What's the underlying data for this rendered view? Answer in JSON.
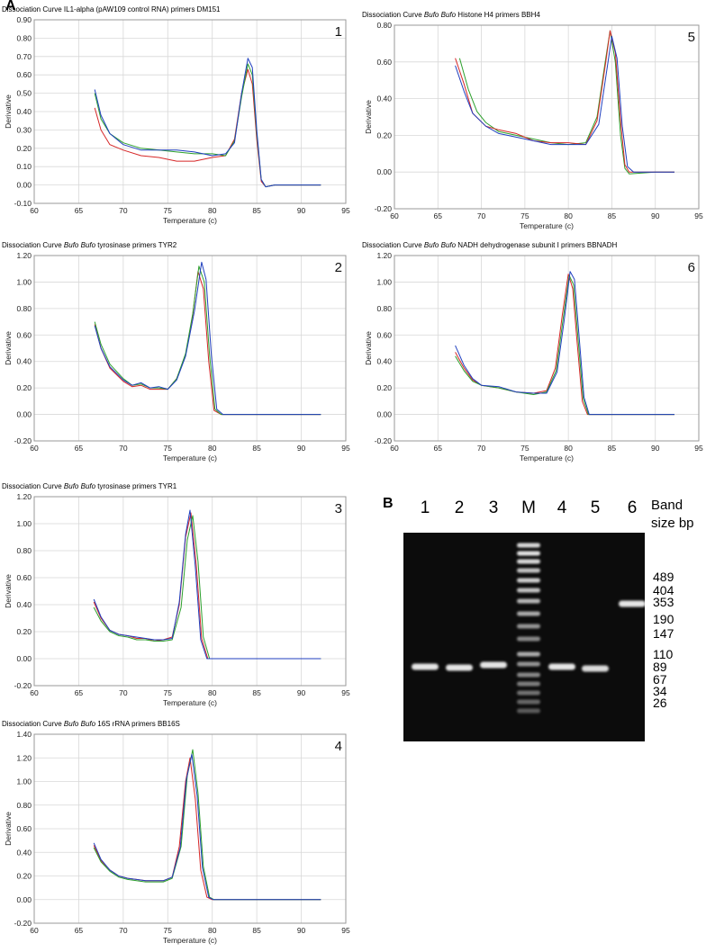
{
  "panel_labels": {
    "a": "A",
    "b": "B"
  },
  "chart_data": [
    {
      "type": "line",
      "id": "c1",
      "number": "1",
      "title_parts": [
        "Dissociation Curve IL1-alpha (pAW109 control RNA) primers DM151"
      ],
      "xlabel": "Temperature (c)",
      "ylabel": "Derivative",
      "xlim": [
        60,
        95
      ],
      "ylim": [
        -0.1,
        0.9
      ],
      "xticks": [
        60,
        65,
        70,
        75,
        80,
        85,
        90,
        95
      ],
      "yticks": [
        -0.1,
        0.0,
        0.1,
        0.2,
        0.3,
        0.4,
        0.5,
        0.6,
        0.7,
        0.8,
        0.9
      ],
      "ytick_labels": [
        "-0.10",
        "0.00",
        "0.10",
        "0.20",
        "0.30",
        "0.40",
        "0.50",
        "0.60",
        "0.70",
        "0.80",
        "0.90"
      ],
      "grid": true,
      "series": [
        {
          "color": "#d62728",
          "x": [
            66.8,
            67.5,
            68.5,
            70,
            72,
            74,
            76,
            78,
            80,
            81.5,
            82.5,
            83.3,
            84.0,
            84.5,
            85.0,
            85.5,
            86.0,
            87,
            90,
            92.2
          ],
          "values": [
            0.42,
            0.3,
            0.22,
            0.19,
            0.16,
            0.15,
            0.13,
            0.13,
            0.15,
            0.16,
            0.25,
            0.5,
            0.63,
            0.55,
            0.25,
            0.02,
            -0.01,
            0.0,
            0.0,
            0.0
          ]
        },
        {
          "color": "#2ca02c",
          "x": [
            66.8,
            67.5,
            68.5,
            70,
            72,
            74,
            76,
            78,
            80,
            81.5,
            82.5,
            83.3,
            84.0,
            84.5,
            85.0,
            85.5,
            86.0,
            87,
            90,
            92.2
          ],
          "values": [
            0.5,
            0.36,
            0.28,
            0.23,
            0.2,
            0.19,
            0.18,
            0.17,
            0.17,
            0.16,
            0.24,
            0.48,
            0.66,
            0.6,
            0.28,
            0.03,
            -0.01,
            0.0,
            0.0,
            0.0
          ]
        },
        {
          "color": "#1f3fbf",
          "x": [
            66.8,
            67.5,
            68.5,
            70,
            72,
            74,
            76,
            78,
            80,
            81.5,
            82.5,
            83.3,
            84.0,
            84.5,
            85.0,
            85.5,
            86.0,
            87,
            90,
            92.2
          ],
          "values": [
            0.52,
            0.38,
            0.28,
            0.22,
            0.19,
            0.19,
            0.19,
            0.18,
            0.16,
            0.17,
            0.23,
            0.5,
            0.69,
            0.64,
            0.3,
            0.03,
            -0.01,
            0.0,
            0.0,
            0.0
          ]
        }
      ]
    },
    {
      "type": "line",
      "id": "c5",
      "number": "5",
      "title_parts": [
        "Dissociation Curve ",
        "Bufo Bufo",
        " Histone H4 primers BBH4"
      ],
      "xlabel": "Temperature (c)",
      "ylabel": "Derivative",
      "xlim": [
        60,
        95
      ],
      "ylim": [
        -0.2,
        0.8
      ],
      "xticks": [
        60,
        65,
        70,
        75,
        80,
        85,
        90,
        95
      ],
      "yticks": [
        -0.2,
        0.0,
        0.2,
        0.4,
        0.6,
        0.8
      ],
      "ytick_labels": [
        "-0.20",
        "0.00",
        "0.20",
        "0.40",
        "0.60",
        "0.80"
      ],
      "grid": true,
      "series": [
        {
          "color": "#2ca02c",
          "x": [
            67.5,
            68.5,
            69.5,
            70.5,
            72,
            74,
            76,
            78,
            80,
            82,
            83.3,
            84.3,
            84.8,
            85.4,
            86.0,
            86.5,
            87,
            90,
            92.2
          ],
          "values": [
            0.62,
            0.45,
            0.33,
            0.27,
            0.22,
            0.2,
            0.18,
            0.16,
            0.15,
            0.16,
            0.3,
            0.62,
            0.77,
            0.6,
            0.2,
            0.02,
            -0.01,
            0.0,
            0.0
          ]
        },
        {
          "color": "#d62728",
          "x": [
            67.0,
            68.0,
            69.0,
            70.5,
            72,
            74,
            76,
            78,
            80,
            82,
            83.3,
            84.3,
            84.8,
            85.4,
            86.0,
            86.5,
            87,
            90,
            92.2
          ],
          "values": [
            0.62,
            0.48,
            0.32,
            0.25,
            0.23,
            0.21,
            0.17,
            0.16,
            0.16,
            0.15,
            0.28,
            0.6,
            0.77,
            0.65,
            0.28,
            0.04,
            0.0,
            0.0,
            0.0
          ]
        },
        {
          "color": "#1f3fbf",
          "x": [
            67.0,
            68.0,
            69.0,
            70.5,
            72,
            74,
            76,
            78,
            80,
            82,
            83.5,
            84.5,
            85.0,
            85.6,
            86.2,
            86.8,
            87.5,
            90,
            92.2
          ],
          "values": [
            0.58,
            0.44,
            0.32,
            0.25,
            0.21,
            0.19,
            0.17,
            0.15,
            0.15,
            0.15,
            0.26,
            0.58,
            0.74,
            0.62,
            0.25,
            0.03,
            0.0,
            0.0,
            0.0
          ]
        }
      ]
    },
    {
      "type": "line",
      "id": "c2",
      "number": "2",
      "title_parts": [
        "Dissociation Curve ",
        "Bufo Bufo",
        "  tyrosinase primers TYR2"
      ],
      "xlabel": "Temperature (c)",
      "ylabel": "Derivative",
      "xlim": [
        60,
        95
      ],
      "ylim": [
        -0.2,
        1.2
      ],
      "xticks": [
        60,
        65,
        70,
        75,
        80,
        85,
        90,
        95
      ],
      "yticks": [
        -0.2,
        0.0,
        0.2,
        0.4,
        0.6,
        0.8,
        1.0,
        1.2
      ],
      "ytick_labels": [
        "-0.20",
        "0.00",
        "0.20",
        "0.40",
        "0.60",
        "0.80",
        "1.00",
        "1.20"
      ],
      "grid": true,
      "series": [
        {
          "color": "#d62728",
          "x": [
            66.8,
            67.5,
            68.5,
            70,
            71,
            72,
            73,
            74,
            75,
            76,
            77,
            77.8,
            78.4,
            79.0,
            79.6,
            80.2,
            81,
            85,
            92.2
          ],
          "values": [
            0.68,
            0.5,
            0.35,
            0.25,
            0.21,
            0.22,
            0.19,
            0.19,
            0.19,
            0.27,
            0.45,
            0.75,
            1.08,
            0.95,
            0.4,
            0.03,
            0.0,
            0.0,
            0.0
          ]
        },
        {
          "color": "#2ca02c",
          "x": [
            66.8,
            67.5,
            68.5,
            70,
            71,
            72,
            73,
            74,
            75,
            76,
            77,
            77.8,
            78.5,
            79.1,
            79.7,
            80.3,
            81,
            85,
            92.2
          ],
          "values": [
            0.7,
            0.53,
            0.38,
            0.27,
            0.22,
            0.23,
            0.2,
            0.2,
            0.19,
            0.27,
            0.46,
            0.76,
            1.12,
            1.0,
            0.45,
            0.04,
            0.0,
            0.0,
            0.0
          ]
        },
        {
          "color": "#1f3fbf",
          "x": [
            66.8,
            67.5,
            68.5,
            70,
            71,
            72,
            73,
            74,
            75,
            76,
            77,
            78.0,
            78.8,
            79.3,
            79.9,
            80.5,
            81.2,
            85,
            92.2
          ],
          "values": [
            0.67,
            0.5,
            0.36,
            0.26,
            0.22,
            0.24,
            0.2,
            0.21,
            0.19,
            0.26,
            0.44,
            0.78,
            1.15,
            1.02,
            0.45,
            0.04,
            0.0,
            0.0,
            0.0
          ]
        }
      ]
    },
    {
      "type": "line",
      "id": "c6",
      "number": "6",
      "title_parts": [
        "Dissociation Curve ",
        "Bufo Bufo",
        " NADH dehydrogenase subunit I primers BBNADH"
      ],
      "xlabel": "Temperature (c)",
      "ylabel": "Derivative",
      "xlim": [
        60,
        95
      ],
      "ylim": [
        -0.2,
        1.2
      ],
      "xticks": [
        60,
        65,
        70,
        75,
        80,
        85,
        90,
        95
      ],
      "yticks": [
        -0.2,
        0.0,
        0.2,
        0.4,
        0.6,
        0.8,
        1.0,
        1.2
      ],
      "ytick_labels": [
        "-0.20",
        "0.00",
        "0.20",
        "0.40",
        "0.60",
        "0.80",
        "1.00",
        "1.20"
      ],
      "grid": true,
      "series": [
        {
          "color": "#d62728",
          "x": [
            67.0,
            68.0,
            69.0,
            70,
            72,
            74,
            76,
            77.5,
            78.5,
            79.3,
            80.0,
            80.5,
            81.0,
            81.6,
            82.2,
            85,
            92.2
          ],
          "values": [
            0.47,
            0.35,
            0.26,
            0.22,
            0.2,
            0.17,
            0.16,
            0.18,
            0.35,
            0.75,
            1.06,
            0.95,
            0.55,
            0.1,
            0.0,
            0.0,
            0.0
          ]
        },
        {
          "color": "#2ca02c",
          "x": [
            67.0,
            68.0,
            69.0,
            70,
            72,
            74,
            76,
            77.5,
            78.6,
            79.4,
            80.1,
            80.6,
            81.1,
            81.7,
            82.3,
            85,
            92.2
          ],
          "values": [
            0.44,
            0.33,
            0.25,
            0.22,
            0.2,
            0.17,
            0.15,
            0.17,
            0.33,
            0.72,
            1.05,
            0.98,
            0.58,
            0.12,
            0.0,
            0.0,
            0.0
          ]
        },
        {
          "color": "#1f3fbf",
          "x": [
            67.0,
            68.0,
            69.0,
            70,
            72,
            74,
            76,
            77.5,
            78.7,
            79.5,
            80.2,
            80.7,
            81.2,
            81.8,
            82.4,
            85,
            92.2
          ],
          "values": [
            0.52,
            0.37,
            0.27,
            0.22,
            0.21,
            0.17,
            0.16,
            0.16,
            0.32,
            0.7,
            1.08,
            1.02,
            0.62,
            0.13,
            0.0,
            0.0,
            0.0
          ]
        }
      ]
    },
    {
      "type": "line",
      "id": "c3",
      "number": "3",
      "title_parts": [
        "Dissociation Curve ",
        "Bufo Bufo",
        "  tyrosinase primers TYR1"
      ],
      "xlabel": "Temperature (c)",
      "ylabel": "Derivative",
      "xlim": [
        60,
        95
      ],
      "ylim": [
        -0.2,
        1.2
      ],
      "xticks": [
        60,
        65,
        70,
        75,
        80,
        85,
        90,
        95
      ],
      "yticks": [
        -0.2,
        0.0,
        0.2,
        0.4,
        0.6,
        0.8,
        1.0,
        1.2
      ],
      "ytick_labels": [
        "-0.20",
        "0.00",
        "0.20",
        "0.40",
        "0.60",
        "0.80",
        "1.00",
        "1.20"
      ],
      "grid": true,
      "series": [
        {
          "color": "#d62728",
          "x": [
            66.7,
            67.5,
            68.5,
            69.5,
            70.5,
            71.5,
            72.5,
            73.5,
            74.5,
            75.5,
            76.3,
            77.0,
            77.6,
            78.2,
            78.8,
            79.5,
            85,
            92.2
          ],
          "values": [
            0.42,
            0.3,
            0.21,
            0.18,
            0.17,
            0.15,
            0.15,
            0.13,
            0.14,
            0.16,
            0.4,
            0.9,
            1.08,
            0.7,
            0.15,
            0.0,
            0.0,
            0.0
          ]
        },
        {
          "color": "#2ca02c",
          "x": [
            66.7,
            67.5,
            68.5,
            69.5,
            70.5,
            71.5,
            72.5,
            73.5,
            74.5,
            75.5,
            76.5,
            77.2,
            77.8,
            78.4,
            79.0,
            79.7,
            85,
            92.2
          ],
          "values": [
            0.38,
            0.28,
            0.2,
            0.17,
            0.16,
            0.14,
            0.14,
            0.13,
            0.13,
            0.14,
            0.38,
            0.88,
            1.06,
            0.72,
            0.16,
            0.0,
            0.0,
            0.0
          ]
        },
        {
          "color": "#1f3fbf",
          "x": [
            66.7,
            67.5,
            68.5,
            69.5,
            70.5,
            71.5,
            72.5,
            73.5,
            74.5,
            75.5,
            76.3,
            77.0,
            77.5,
            78.1,
            78.7,
            79.4,
            85,
            92.2
          ],
          "values": [
            0.44,
            0.31,
            0.21,
            0.18,
            0.17,
            0.16,
            0.15,
            0.14,
            0.14,
            0.15,
            0.42,
            0.92,
            1.1,
            0.68,
            0.14,
            0.0,
            0.0,
            0.0
          ]
        }
      ]
    },
    {
      "type": "line",
      "id": "c4",
      "number": "4",
      "title_parts": [
        "Dissociation Curve ",
        "Bufo Bufo",
        " 16S rRNA primers BB16S"
      ],
      "xlabel": "Temperature (c)",
      "ylabel": "Derivative",
      "xlim": [
        60,
        95
      ],
      "ylim": [
        -0.2,
        1.4
      ],
      "xticks": [
        60,
        65,
        70,
        75,
        80,
        85,
        90,
        95
      ],
      "yticks": [
        -0.2,
        0.0,
        0.2,
        0.4,
        0.6,
        0.8,
        1.0,
        1.2,
        1.4
      ],
      "ytick_labels": [
        "-0.20",
        "0.00",
        "0.20",
        "0.40",
        "0.60",
        "0.80",
        "1.00",
        "1.20",
        "1.40"
      ],
      "grid": true,
      "series": [
        {
          "color": "#d62728",
          "x": [
            66.7,
            67.5,
            68.5,
            69.5,
            70.5,
            71.5,
            72.5,
            73.5,
            74.5,
            75.5,
            76.3,
            77.0,
            77.5,
            78.1,
            78.7,
            79.4,
            80.0,
            85,
            92.2
          ],
          "values": [
            0.46,
            0.33,
            0.25,
            0.2,
            0.18,
            0.17,
            0.16,
            0.16,
            0.16,
            0.19,
            0.45,
            1.0,
            1.2,
            0.85,
            0.25,
            0.02,
            0.0,
            0.0,
            0.0
          ]
        },
        {
          "color": "#2ca02c",
          "x": [
            66.7,
            67.5,
            68.5,
            69.5,
            70.5,
            71.5,
            72.5,
            73.5,
            74.5,
            75.5,
            76.5,
            77.2,
            77.8,
            78.4,
            79.0,
            79.7,
            80.2,
            85,
            92.2
          ],
          "values": [
            0.44,
            0.32,
            0.24,
            0.19,
            0.17,
            0.16,
            0.15,
            0.15,
            0.15,
            0.18,
            0.45,
            1.05,
            1.27,
            0.9,
            0.28,
            0.02,
            0.0,
            0.0,
            0.0
          ]
        },
        {
          "color": "#1f3fbf",
          "x": [
            66.7,
            67.5,
            68.5,
            69.5,
            70.5,
            71.5,
            72.5,
            73.5,
            74.5,
            75.5,
            76.4,
            77.1,
            77.7,
            78.3,
            78.9,
            79.6,
            80.1,
            85,
            92.2
          ],
          "values": [
            0.48,
            0.34,
            0.25,
            0.2,
            0.18,
            0.17,
            0.16,
            0.16,
            0.16,
            0.19,
            0.44,
            1.02,
            1.23,
            0.88,
            0.27,
            0.02,
            0.0,
            0.0,
            0.0
          ]
        }
      ]
    }
  ],
  "gel": {
    "lane_labels": [
      "1",
      "2",
      "3",
      "M",
      "4",
      "5",
      "6"
    ],
    "band_size_label": [
      "Band",
      "size bp"
    ],
    "size_labels": [
      "489",
      "404",
      "353",
      "190",
      "147",
      "110",
      "89",
      "67",
      "34",
      "26"
    ],
    "background": "#0c0c0c",
    "band_color": "#f2f2f2"
  }
}
